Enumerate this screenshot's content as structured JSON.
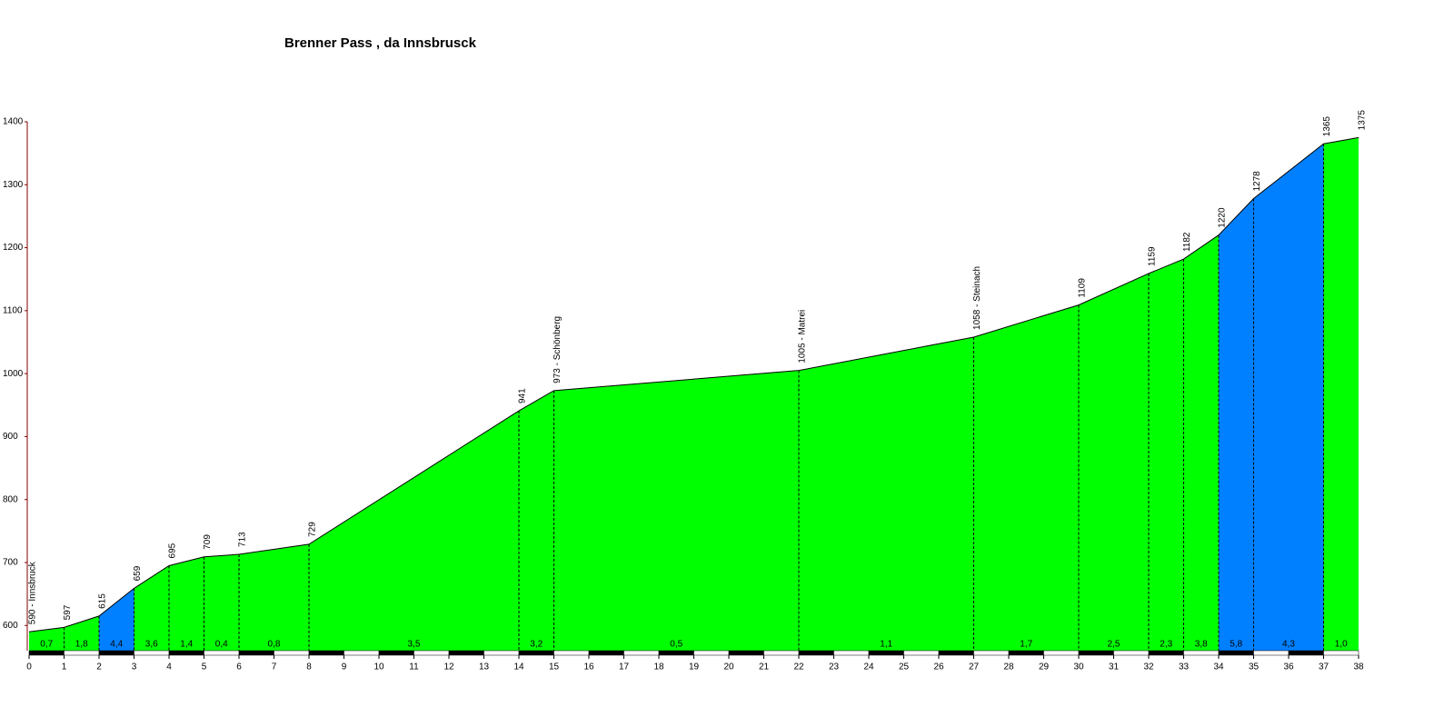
{
  "chart_data": {
    "type": "elevation-profile",
    "title": "Brenner Pass , da Innsbrusck",
    "x": [
      0,
      1,
      2,
      3,
      4,
      5,
      6,
      8,
      14,
      15,
      22,
      27,
      30,
      32,
      33,
      34,
      35,
      37,
      38
    ],
    "values": [
      590,
      597,
      615,
      659,
      695,
      709,
      713,
      729,
      941,
      973,
      1005,
      1058,
      1109,
      1159,
      1182,
      1220,
      1278,
      1365,
      1375
    ],
    "value_labels": [
      "590 - Innsbruck",
      "597",
      "615",
      "659",
      "695",
      "709",
      "713",
      "729",
      "941",
      "973 - Schönberg",
      "1005 - Matrei",
      "1058 - Steinach",
      "1109",
      "1159",
      "1182",
      "1220",
      "1278",
      "1365",
      "1375"
    ],
    "gradients": [
      0.7,
      1.8,
      4.4,
      3.6,
      1.4,
      0.4,
      0.8,
      3.5,
      3.2,
      0.5,
      1.1,
      1.7,
      2.5,
      2.3,
      3.8,
      5.8,
      4.3,
      1.0
    ],
    "gradient_labels": [
      "0,7",
      "1,8",
      "4,4",
      "3,6",
      "1,4",
      "0,4",
      "0,8",
      "3,5",
      "3,2",
      "0,5",
      "1,1",
      "1,7",
      "2,5",
      "2,3",
      "3,8",
      "5,8",
      "4,3",
      "1,0"
    ],
    "segment_colors": [
      "#00ff00",
      "#00ff00",
      "#0080ff",
      "#00ff00",
      "#00ff00",
      "#00ff00",
      "#00ff00",
      "#00ff00",
      "#00ff00",
      "#00ff00",
      "#00ff00",
      "#00ff00",
      "#00ff00",
      "#00ff00",
      "#00ff00",
      "#0080ff",
      "#0080ff",
      "#00ff00"
    ],
    "xlim": [
      0,
      38
    ],
    "xticks": [
      0,
      1,
      2,
      3,
      4,
      5,
      6,
      7,
      8,
      9,
      10,
      11,
      12,
      13,
      14,
      15,
      16,
      17,
      18,
      19,
      20,
      21,
      22,
      23,
      24,
      25,
      26,
      27,
      28,
      29,
      30,
      31,
      32,
      33,
      34,
      35,
      36,
      37,
      38
    ],
    "ylim": [
      560,
      1400
    ],
    "yticks": [
      600,
      700,
      800,
      900,
      1000,
      1100,
      1200,
      1300,
      1400
    ]
  }
}
